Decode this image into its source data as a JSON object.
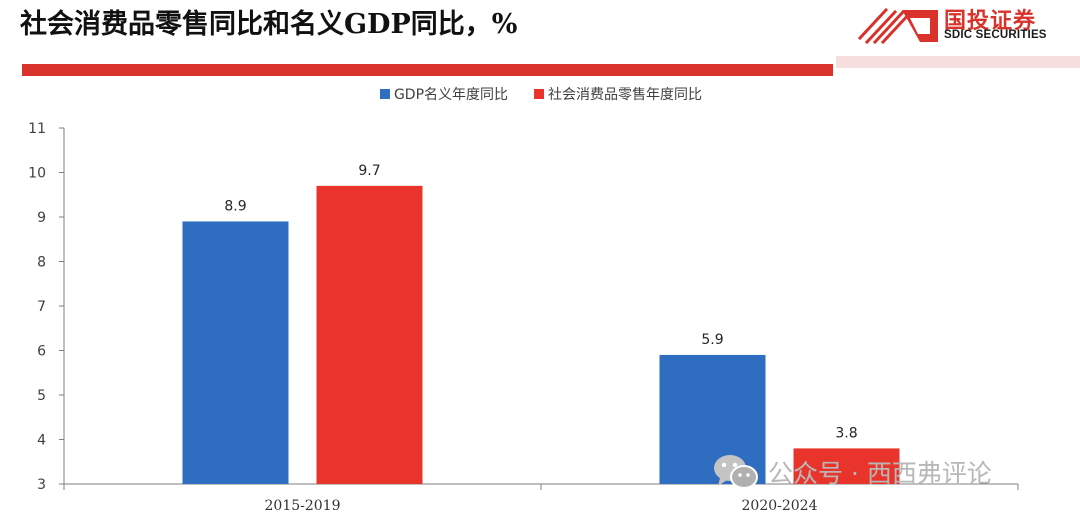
{
  "header": {
    "title": "社会消费品零售同比和名义GDP同比，%",
    "brand_name": "国投证券",
    "brand_en": "SDIC SECURITIES",
    "brand_color": "#d8322a"
  },
  "watermark": {
    "icon": "wechat-icon",
    "text": "公众号 · 西西弗评论"
  },
  "chart_data": {
    "type": "bar",
    "categories": [
      "2015-2019",
      "2020-2024"
    ],
    "series": [
      {
        "name": "GDP名义年度同比",
        "values": [
          8.9,
          5.9
        ],
        "color": "#2e6dbf"
      },
      {
        "name": "社会消费品零售年度同比",
        "values": [
          9.7,
          3.8
        ],
        "color": "#e8342a"
      }
    ],
    "ylim": [
      3,
      11
    ],
    "yticks": [
      3,
      4,
      5,
      6,
      7,
      8,
      9,
      10,
      11
    ],
    "xlabel": "",
    "ylabel": "",
    "legend_position": "top-center",
    "grid": false,
    "data_labels": true
  }
}
